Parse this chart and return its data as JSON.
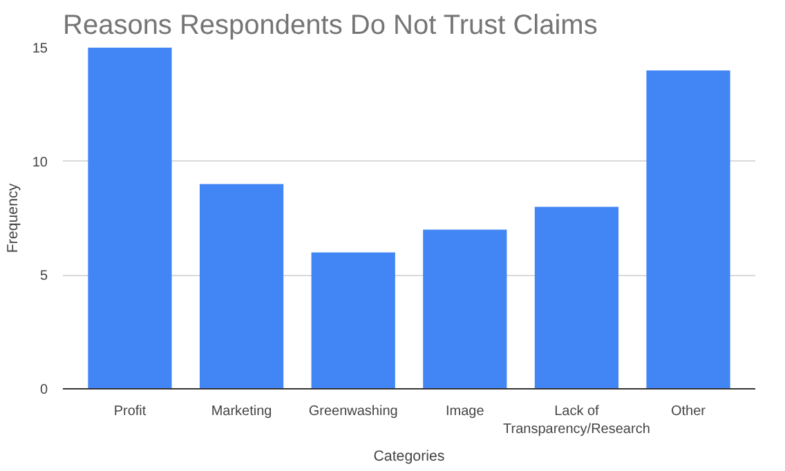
{
  "chart_data": {
    "type": "bar",
    "title": "Reasons Respondents Do Not Trust Claims",
    "xlabel": "Categories",
    "ylabel": "Frequency",
    "categories": [
      "Profit",
      "Marketing",
      "Greenwashing",
      "Image",
      "Lack of Transparency/Research",
      "Other"
    ],
    "values": [
      15,
      9,
      6,
      7,
      8,
      14
    ],
    "color": "#4285f4",
    "ylim": [
      0,
      15
    ],
    "yticks": [
      0,
      5,
      10,
      15
    ],
    "grid": "y"
  }
}
